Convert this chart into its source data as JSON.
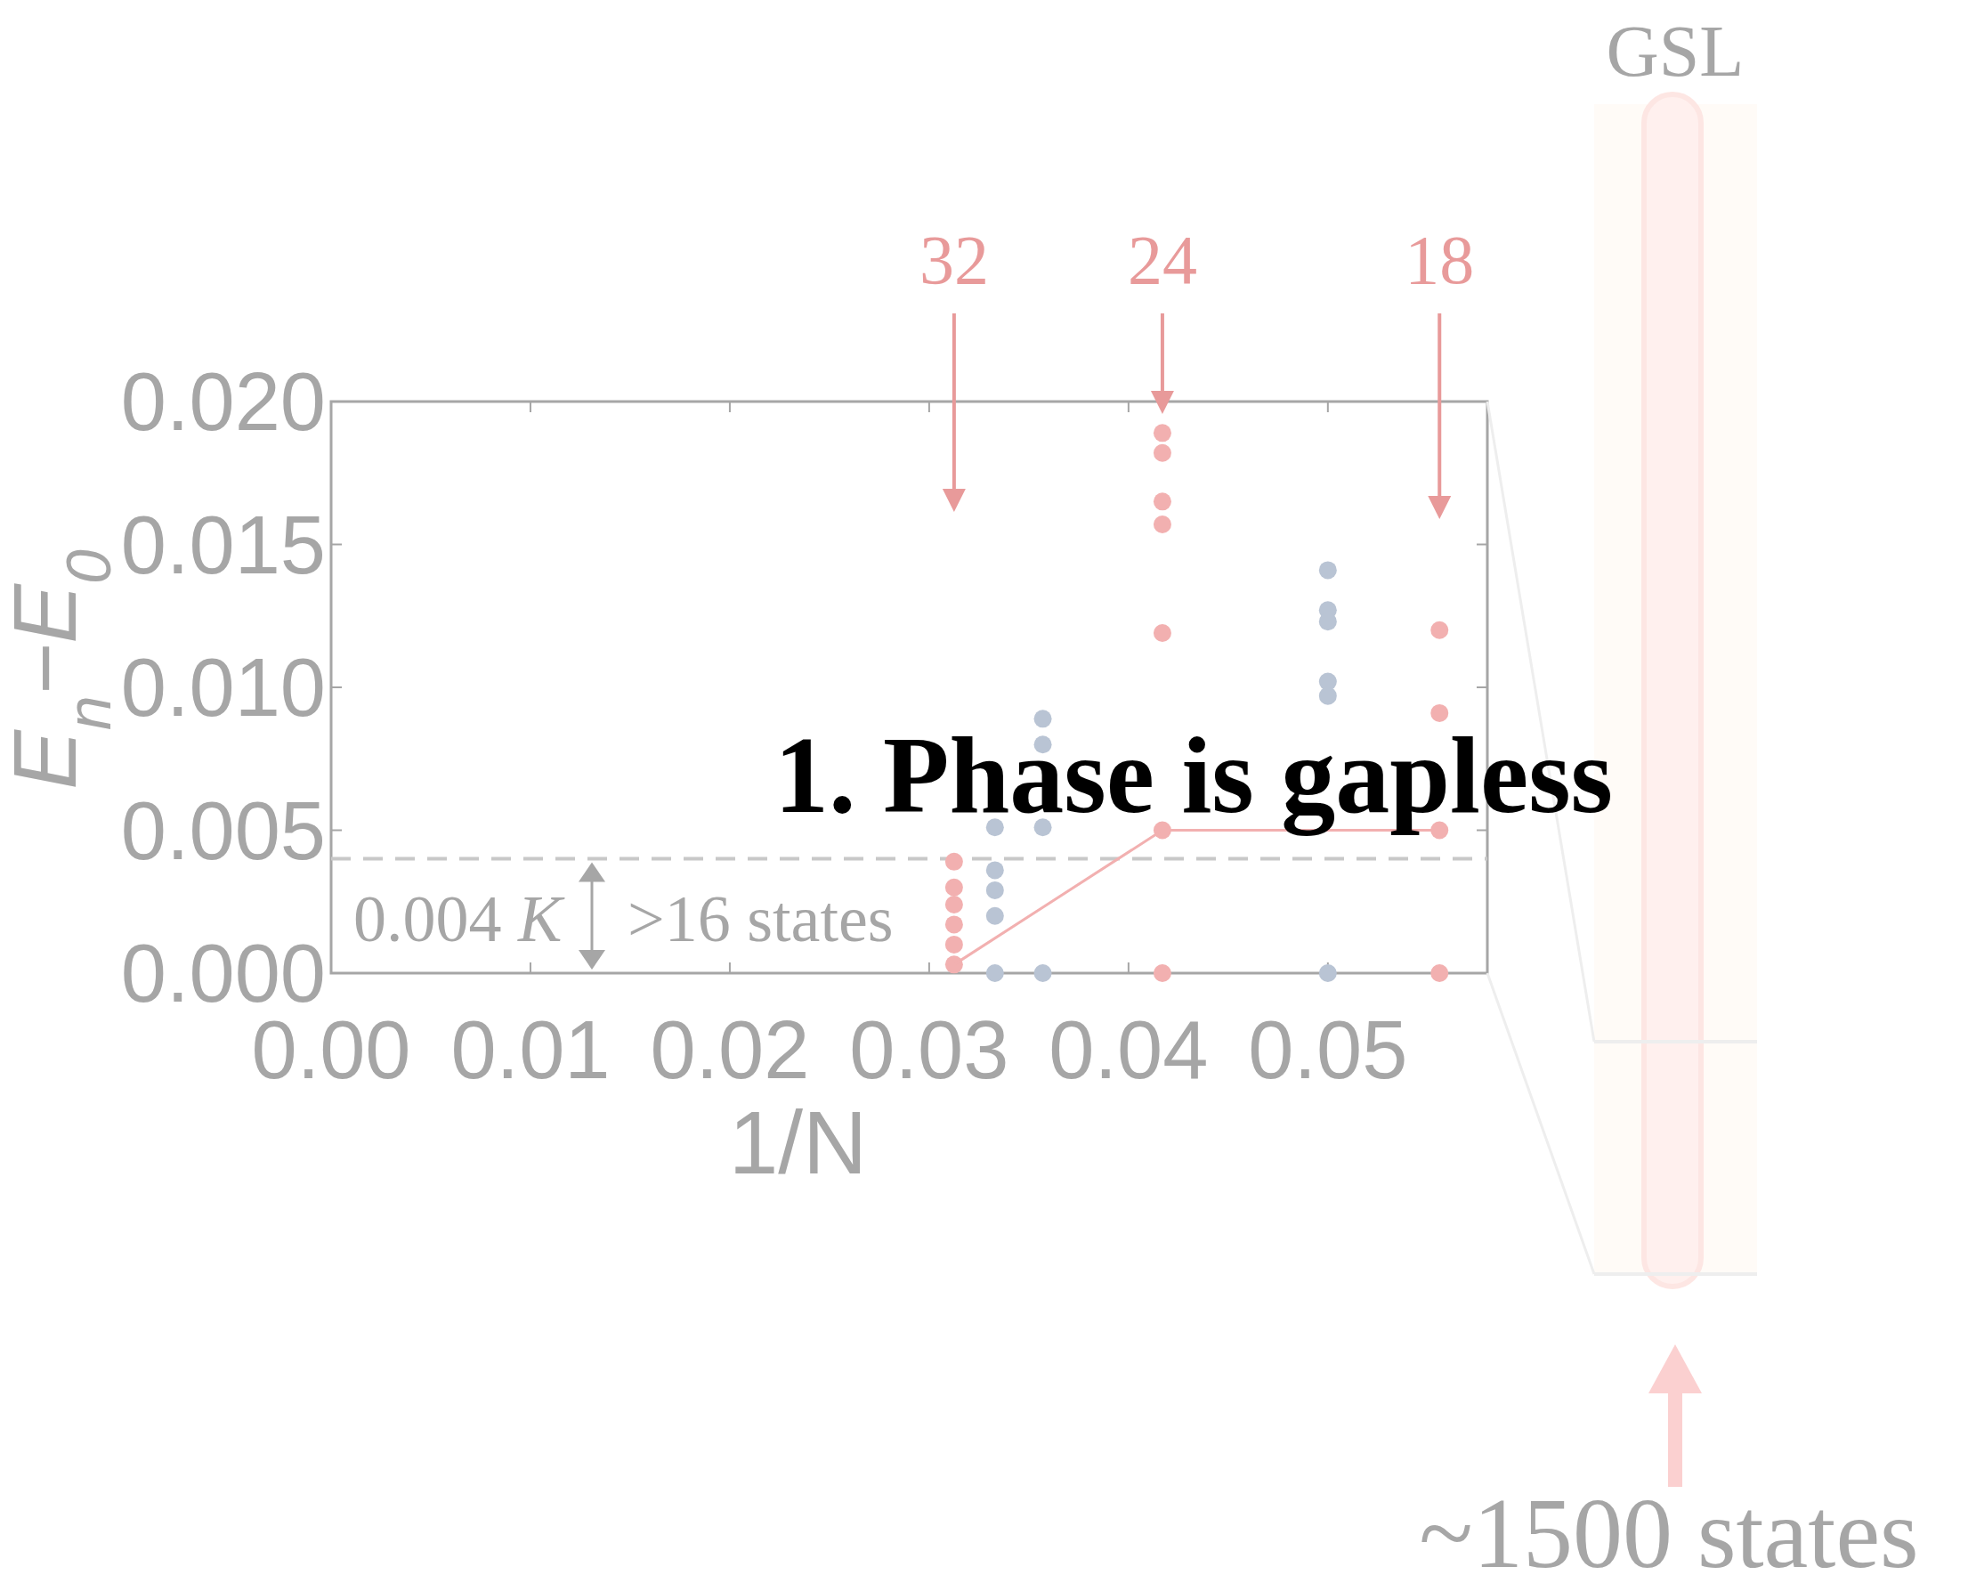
{
  "chart_data": {
    "type": "scatter",
    "title": "1. Phase is gapless",
    "xlabel": "1/N",
    "ylabel": "E$_{n}$−E$_{0}$",
    "xlim": [
      0,
      0.058
    ],
    "xticks": [
      {
        "value": 0,
        "label": "0.00"
      },
      {
        "value": 0.01,
        "label": "0.01"
      },
      {
        "value": 0.02,
        "label": "0.02"
      },
      {
        "value": 0.03,
        "label": "0.03"
      },
      {
        "value": 0.04,
        "label": "0.04"
      },
      {
        "value": 0.05,
        "label": "0.05"
      }
    ],
    "ylim": [
      0,
      0.02
    ],
    "yticks": [
      {
        "value": 0,
        "label": "0.000"
      },
      {
        "value": 0.005,
        "label": "0.005"
      },
      {
        "value": 0.01,
        "label": "0.010"
      },
      {
        "value": 0.015,
        "label": "0.015"
      },
      {
        "value": 0.02,
        "label": "0.020"
      }
    ],
    "grid": false,
    "marker": "circle",
    "series": [
      {
        "color": "#f2b0b0",
        "x": [
          0.03125,
          0.03125,
          0.03125,
          0.03125,
          0.03125,
          0.03125,
          0.0417,
          0.0417,
          0.0417,
          0.0417,
          0.0417,
          0.0417,
          0.0417,
          0.0556,
          0.0556,
          0.0556,
          0.0556
        ],
        "values": [
          0.0039,
          0.003,
          0.0024,
          0.0017,
          0.001,
          0.0003,
          0.0189,
          0.0182,
          0.0165,
          0.0157,
          0.0119,
          0.005,
          0,
          0.012,
          0.0091,
          0.005,
          0
        ]
      },
      {
        "color": "#b9c4d4",
        "x": [
          0.0333,
          0.0333,
          0.0333,
          0.0333,
          0.0333,
          0.0357,
          0.0357,
          0.0357,
          0.0357,
          0.05,
          0.05,
          0.05,
          0.05,
          0.05,
          0.05
        ],
        "values": [
          0.0051,
          0.0036,
          0.0029,
          0.002,
          0,
          0.0089,
          0.008,
          0.0051,
          0,
          0.0141,
          0.0127,
          0.0123,
          0.0102,
          0.0097,
          0
        ]
      },
      {
        "type": "line",
        "color": "#f2b0b0",
        "marker": "none",
        "x": [
          0.03125,
          0.0417,
          0.0556
        ],
        "values": [
          0.0003,
          0.005,
          0.005
        ]
      }
    ],
    "ref_lines": [
      {
        "axis": "y",
        "value": 0.004,
        "color": "#c8c8c8",
        "line_style": "dashed"
      }
    ],
    "annotations": [
      "0.004 K",
      ">16 states",
      "GSL",
      "~1500 states",
      {
        "text": "32",
        "x": 0.03125
      },
      {
        "text": "24",
        "x": 0.0417
      },
      {
        "text": "18",
        "x": 0.0556
      }
    ]
  }
}
